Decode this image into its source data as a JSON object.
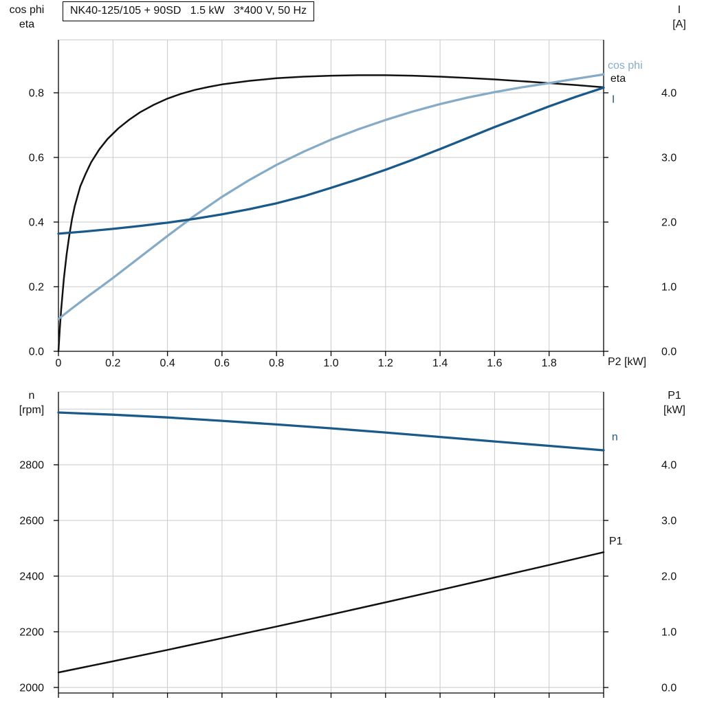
{
  "title_box": "NK40-125/105 + 90SD   1.5 kW   3*400 V, 50 Hz",
  "colors": {
    "black": "#111111",
    "dark_blue": "#1a5a8a",
    "light_blue": "#86abc7",
    "grid": "#c9c9c9",
    "axis": "#000000",
    "text": "#111111"
  },
  "chart_data": [
    {
      "type": "line",
      "title": "NK40-125/105 + 90SD   1.5 kW   3*400 V, 50 Hz",
      "x_axis": {
        "label": "P2 [kW]",
        "range": [
          0,
          2.0
        ],
        "tick_values": [
          0,
          0.2,
          0.4,
          0.6,
          0.8,
          1.0,
          1.2,
          1.4,
          1.6,
          1.8
        ],
        "tick_labels": [
          "0",
          "0.2",
          "0.4",
          "0.6",
          "0.8",
          "1.0",
          "1.2",
          "1.4",
          "1.6",
          "1.8"
        ],
        "grid_values": [
          0.2,
          0.4,
          0.6,
          0.8,
          1.0,
          1.2,
          1.4,
          1.6,
          1.8,
          2.0
        ]
      },
      "y_left": {
        "label_line1": "cos phi",
        "label_line2": "eta",
        "range": [
          0,
          0.9638
        ],
        "tick_values": [
          0,
          0.2,
          0.4,
          0.6,
          0.8
        ],
        "tick_labels": [
          "0.0",
          "0.2",
          "0.4",
          "0.6",
          "0.8"
        ],
        "grid_values": [
          0.2,
          0.4,
          0.6,
          0.8
        ]
      },
      "y_right": {
        "label_line1": "I",
        "label_line2": "[A]",
        "range": [
          0,
          4.819
        ],
        "tick_values": [
          0,
          1,
          2,
          3,
          4
        ],
        "tick_labels": [
          "0.0",
          "1.0",
          "2.0",
          "3.0",
          "4.0"
        ]
      },
      "series": [
        {
          "name": "eta",
          "axis": "left",
          "color": "black",
          "label": "eta",
          "label_at": [
            2.025,
            0.845
          ],
          "points": [
            [
              0,
              0
            ],
            [
              0.005,
              0.07
            ],
            [
              0.01,
              0.13
            ],
            [
              0.02,
              0.225
            ],
            [
              0.03,
              0.3
            ],
            [
              0.04,
              0.36
            ],
            [
              0.05,
              0.41
            ],
            [
              0.06,
              0.45
            ],
            [
              0.08,
              0.51
            ],
            [
              0.1,
              0.55
            ],
            [
              0.12,
              0.585
            ],
            [
              0.15,
              0.625
            ],
            [
              0.18,
              0.657
            ],
            [
              0.22,
              0.69
            ],
            [
              0.26,
              0.717
            ],
            [
              0.3,
              0.74
            ],
            [
              0.35,
              0.763
            ],
            [
              0.4,
              0.782
            ],
            [
              0.45,
              0.797
            ],
            [
              0.5,
              0.809
            ],
            [
              0.55,
              0.818
            ],
            [
              0.6,
              0.826
            ],
            [
              0.7,
              0.837
            ],
            [
              0.8,
              0.845
            ],
            [
              0.9,
              0.85
            ],
            [
              1.0,
              0.853
            ],
            [
              1.1,
              0.8545
            ],
            [
              1.2,
              0.8545
            ],
            [
              1.3,
              0.853
            ],
            [
              1.4,
              0.85
            ],
            [
              1.5,
              0.846
            ],
            [
              1.6,
              0.8415
            ],
            [
              1.7,
              0.836
            ],
            [
              1.8,
              0.83
            ],
            [
              1.9,
              0.824
            ],
            [
              2.0,
              0.817
            ]
          ]
        },
        {
          "name": "cos-phi",
          "axis": "left",
          "color": "light_blue",
          "label": "cos phi",
          "label_at": [
            2.015,
            0.885
          ],
          "points": [
            [
              0,
              0.1
            ],
            [
              0.05,
              0.133
            ],
            [
              0.1,
              0.165
            ],
            [
              0.15,
              0.196
            ],
            [
              0.2,
              0.227
            ],
            [
              0.3,
              0.292
            ],
            [
              0.4,
              0.357
            ],
            [
              0.5,
              0.42
            ],
            [
              0.6,
              0.478
            ],
            [
              0.7,
              0.53
            ],
            [
              0.8,
              0.577
            ],
            [
              0.9,
              0.618
            ],
            [
              1.0,
              0.655
            ],
            [
              1.1,
              0.687
            ],
            [
              1.2,
              0.716
            ],
            [
              1.3,
              0.742
            ],
            [
              1.4,
              0.765
            ],
            [
              1.5,
              0.785
            ],
            [
              1.6,
              0.802
            ],
            [
              1.7,
              0.817
            ],
            [
              1.8,
              0.83
            ],
            [
              1.9,
              0.8435
            ],
            [
              2.0,
              0.857
            ]
          ]
        },
        {
          "name": "current",
          "axis": "right",
          "color": "dark_blue",
          "label": "I",
          "label_at": [
            2.03,
            3.9
          ],
          "points": [
            [
              0,
              1.82
            ],
            [
              0.1,
              1.855
            ],
            [
              0.2,
              1.895
            ],
            [
              0.3,
              1.94
            ],
            [
              0.4,
              1.99
            ],
            [
              0.5,
              2.05
            ],
            [
              0.6,
              2.12
            ],
            [
              0.7,
              2.2
            ],
            [
              0.8,
              2.29
            ],
            [
              0.9,
              2.4
            ],
            [
              1.0,
              2.53
            ],
            [
              1.1,
              2.665
            ],
            [
              1.2,
              2.81
            ],
            [
              1.3,
              2.965
            ],
            [
              1.4,
              3.13
            ],
            [
              1.5,
              3.3
            ],
            [
              1.6,
              3.47
            ],
            [
              1.7,
              3.63
            ],
            [
              1.8,
              3.79
            ],
            [
              1.9,
              3.94
            ],
            [
              2.0,
              4.08
            ]
          ]
        }
      ]
    },
    {
      "type": "line",
      "x_axis": {
        "label": "",
        "range": [
          0,
          2.0
        ],
        "tick_values": [],
        "tick_labels": [],
        "grid_values": [
          0.2,
          0.4,
          0.6,
          0.8,
          1.0,
          1.2,
          1.4,
          1.6,
          1.8,
          2.0
        ]
      },
      "y_left": {
        "label_line1": "n",
        "label_line2": "[rpm]",
        "range": [
          1980,
          3062
        ],
        "tick_values": [
          2000,
          2200,
          2400,
          2600,
          2800
        ],
        "tick_labels": [
          "2000",
          "2200",
          "2400",
          "2600",
          "2800"
        ],
        "grid_values": [
          2000,
          2200,
          2400,
          2600,
          2800,
          3000
        ]
      },
      "y_right": {
        "label_line1": "P1",
        "label_line2": "[kW]",
        "range": [
          -0.099,
          5.309
        ],
        "tick_values": [
          0,
          1,
          2,
          3,
          4
        ],
        "tick_labels": [
          "0.0",
          "1.0",
          "2.0",
          "3.0",
          "4.0"
        ]
      },
      "series": [
        {
          "name": "speed",
          "axis": "left",
          "color": "dark_blue",
          "label": "n",
          "label_at": [
            2.03,
            2900
          ],
          "points": [
            [
              0,
              2988
            ],
            [
              0.2,
              2980
            ],
            [
              0.4,
              2970
            ],
            [
              0.6,
              2958
            ],
            [
              0.8,
              2945
            ],
            [
              1.0,
              2931
            ],
            [
              1.2,
              2916
            ],
            [
              1.4,
              2900
            ],
            [
              1.6,
              2884
            ],
            [
              1.8,
              2868
            ],
            [
              2.0,
              2852
            ]
          ]
        },
        {
          "name": "p1",
          "axis": "right",
          "color": "black",
          "label": "P1",
          "label_at": [
            2.02,
            2.63
          ],
          "points": [
            [
              0,
              0.27
            ],
            [
              0.2,
              0.47
            ],
            [
              0.4,
              0.675
            ],
            [
              0.6,
              0.885
            ],
            [
              0.8,
              1.095
            ],
            [
              1.0,
              1.31
            ],
            [
              1.2,
              1.53
            ],
            [
              1.4,
              1.75
            ],
            [
              1.6,
              1.975
            ],
            [
              1.8,
              2.2
            ],
            [
              2.0,
              2.43
            ]
          ]
        }
      ]
    }
  ]
}
